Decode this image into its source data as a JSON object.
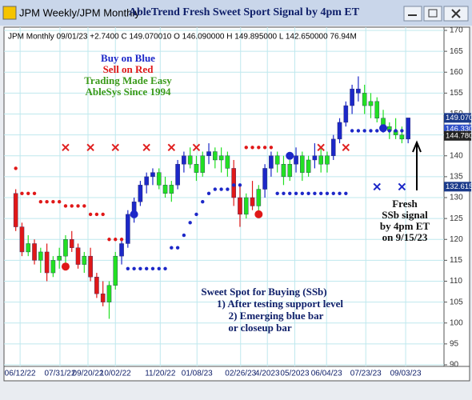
{
  "window": {
    "tab": "JPM Weekly/JPM Monthly"
  },
  "chart_data": {
    "type": "candlestick",
    "title": "AbleTrend Fresh Sweet Sport Signal by 4pm ET",
    "info": "JPM  Monthly 09/01/23 +2.7400 C 149.070010 O 146.090000 H 149.895000 L 142.650000 76.94M",
    "annotations": {
      "legend": [
        "Buy on Blue",
        "Sell on Red",
        "Trading Made Easy",
        "AbleSys Since 1994"
      ],
      "signal": [
        "Fresh",
        "SSb signal",
        "by 4pm ET",
        "on 9/15/23"
      ],
      "ssb": [
        "Sweet Spot for Buying (SSb)",
        "1) After testing support level",
        "2) Emerging blue bar",
        "or closeup bar"
      ]
    },
    "open": [
      131,
      123,
      117,
      119,
      115,
      117,
      112,
      115,
      116,
      120,
      118,
      114,
      116,
      111,
      107,
      105,
      109,
      116,
      119,
      126,
      129,
      133,
      135,
      136,
      133,
      131,
      133,
      138,
      140,
      138,
      136,
      140,
      141,
      139,
      140,
      137,
      130,
      126,
      130,
      128,
      132,
      137,
      140,
      138,
      135,
      138,
      140,
      136,
      139,
      140,
      138,
      140,
      144,
      148,
      152,
      156,
      155,
      152,
      153,
      149,
      147,
      146,
      145,
      144
    ],
    "high": [
      132,
      124,
      121,
      120,
      118,
      119,
      116,
      118,
      121,
      122,
      119,
      117,
      118,
      112,
      110,
      110,
      117,
      120,
      127,
      130,
      134,
      136,
      137,
      137,
      135,
      134,
      139,
      141,
      142,
      140,
      141,
      143,
      142,
      142,
      141,
      139,
      133,
      131,
      134,
      133,
      138,
      141,
      141,
      140,
      139,
      142,
      141,
      140,
      143,
      142,
      141,
      145,
      149,
      153,
      157,
      159,
      157,
      155,
      154,
      151,
      148,
      149,
      147,
      149
    ],
    "low": [
      122,
      116,
      116,
      114,
      112,
      110,
      111,
      113,
      114,
      117,
      113,
      112,
      110,
      106,
      104,
      101,
      108,
      114,
      118,
      124,
      128,
      131,
      133,
      132,
      130,
      129,
      132,
      136,
      137,
      134,
      135,
      138,
      137,
      136,
      135,
      128,
      123,
      125,
      127,
      126,
      130,
      135,
      136,
      133,
      134,
      136,
      134,
      135,
      137,
      136,
      136,
      139,
      143,
      147,
      150,
      153,
      150,
      149,
      148,
      146,
      144,
      144,
      143,
      143
    ],
    "close": [
      123,
      117,
      119,
      115,
      117,
      112,
      115,
      116,
      120,
      118,
      114,
      116,
      111,
      107,
      105,
      109,
      116,
      119,
      126,
      129,
      133,
      135,
      136,
      133,
      131,
      133,
      138,
      140,
      138,
      136,
      140,
      141,
      139,
      140,
      137,
      130,
      126,
      130,
      128,
      132,
      137,
      140,
      138,
      135,
      138,
      140,
      136,
      139,
      140,
      138,
      140,
      144,
      148,
      152,
      156,
      155,
      152,
      153,
      149,
      147,
      146,
      145,
      144,
      149.07
    ],
    "bar_colors": [
      "r",
      "r",
      "g",
      "r",
      "g",
      "r",
      "g",
      "g",
      "g",
      "r",
      "r",
      "g",
      "r",
      "r",
      "r",
      "g",
      "g",
      "b",
      "b",
      "b",
      "b",
      "b",
      "b",
      "g",
      "g",
      "g",
      "b",
      "b",
      "g",
      "g",
      "g",
      "b",
      "g",
      "g",
      "g",
      "r",
      "r",
      "g",
      "r",
      "g",
      "b",
      "b",
      "g",
      "g",
      "g",
      "b",
      "g",
      "g",
      "b",
      "g",
      "g",
      "b",
      "b",
      "b",
      "b",
      "b",
      "g",
      "g",
      "g",
      "g",
      "g",
      "g",
      "g",
      "b"
    ],
    "palette": {
      "r": "#e01818",
      "g": "#22e022",
      "b": "#1c28c8"
    },
    "red_stop": [
      137,
      131,
      131,
      131,
      129,
      129,
      129,
      129,
      128,
      128,
      128,
      128,
      126,
      126,
      126,
      120,
      120,
      120,
      null,
      null,
      null,
      null,
      null,
      null,
      null,
      null,
      null,
      null,
      null,
      null,
      null,
      null,
      null,
      null,
      null,
      null,
      null,
      142,
      142,
      142,
      142,
      142,
      null,
      null,
      null,
      null,
      null,
      null,
      null,
      null,
      null,
      null,
      null,
      null,
      null,
      null,
      null,
      null,
      null,
      null,
      null,
      null,
      null,
      null
    ],
    "blue_stop": [
      null,
      null,
      null,
      null,
      null,
      null,
      null,
      null,
      null,
      null,
      null,
      null,
      null,
      null,
      null,
      null,
      null,
      null,
      113,
      113,
      113,
      113,
      113,
      113,
      113,
      118,
      118,
      121,
      124,
      126,
      129,
      131,
      132,
      132,
      132,
      133,
      133,
      null,
      null,
      null,
      null,
      null,
      131,
      131,
      131,
      131,
      131,
      131,
      131,
      131,
      131,
      131,
      131,
      131,
      146,
      146,
      146,
      146,
      146,
      146,
      146,
      146,
      146,
      null
    ],
    "markers": [
      {
        "bar": 8,
        "price": 142,
        "shape": "x",
        "color": "#e02020"
      },
      {
        "bar": 12,
        "price": 142,
        "shape": "x",
        "color": "#e02020"
      },
      {
        "bar": 16,
        "price": 142,
        "shape": "x",
        "color": "#e02020"
      },
      {
        "bar": 21,
        "price": 142,
        "shape": "x",
        "color": "#e02020"
      },
      {
        "bar": 25,
        "price": 142,
        "shape": "x",
        "color": "#e02020"
      },
      {
        "bar": 29,
        "price": 142,
        "shape": "x",
        "color": "#e02020"
      },
      {
        "bar": 49,
        "price": 142,
        "shape": "x",
        "color": "#e02020"
      },
      {
        "bar": 53,
        "price": 142,
        "shape": "x",
        "color": "#e02020"
      },
      {
        "bar": 58,
        "price": 132.6,
        "shape": "x",
        "color": "#1c28c8"
      },
      {
        "bar": 62,
        "price": 132.6,
        "shape": "x",
        "color": "#1c28c8"
      },
      {
        "bar": 8,
        "price": 113.5,
        "shape": "dot",
        "color": "#e01818"
      },
      {
        "bar": 39,
        "price": 126,
        "shape": "dot",
        "color": "#e01818"
      },
      {
        "bar": 19,
        "price": 126,
        "shape": "dot",
        "color": "#1c28c8"
      },
      {
        "bar": 44,
        "price": 140,
        "shape": "dot",
        "color": "#1c28c8"
      },
      {
        "bar": 59,
        "price": 146.6,
        "shape": "dot",
        "color": "#1c28c8"
      }
    ],
    "xlim": [
      -1.5,
      68.5
    ],
    "xticks": [
      {
        "value": 0.7,
        "label": "06/12/22"
      },
      {
        "value": 7.1,
        "label": "07/31/22"
      },
      {
        "value": 11.6,
        "label": "09/20/22"
      },
      {
        "value": 16,
        "label": "10/02/22"
      },
      {
        "value": 23.2,
        "label": "11/20/22"
      },
      {
        "value": 29.1,
        "label": "01/08/23"
      },
      {
        "value": 36.1,
        "label": "02/26/23"
      },
      {
        "value": 40.4,
        "label": "4/2023"
      },
      {
        "value": 44.8,
        "label": "05/2023"
      },
      {
        "value": 49.9,
        "label": "06/04/23"
      },
      {
        "value": 56.2,
        "label": "07/23/23"
      },
      {
        "value": 62.6,
        "label": "09/03/23"
      }
    ],
    "ylim": [
      90,
      170
    ],
    "yticks": [
      90,
      95,
      100,
      105,
      110,
      115,
      120,
      125,
      130,
      135,
      140,
      145,
      150,
      155,
      160,
      165,
      170
    ],
    "price_tags": [
      {
        "value": 149.07,
        "label": "149.070",
        "color": "#1b3a8a"
      },
      {
        "value": 146.33,
        "label": "146.330",
        "color": "#3050c8"
      },
      {
        "value": 144.78,
        "label": "144.780",
        "color": "#222222"
      },
      {
        "value": 132.615,
        "label": "132.615",
        "color": "#1b3a8a"
      }
    ],
    "grid": true
  }
}
